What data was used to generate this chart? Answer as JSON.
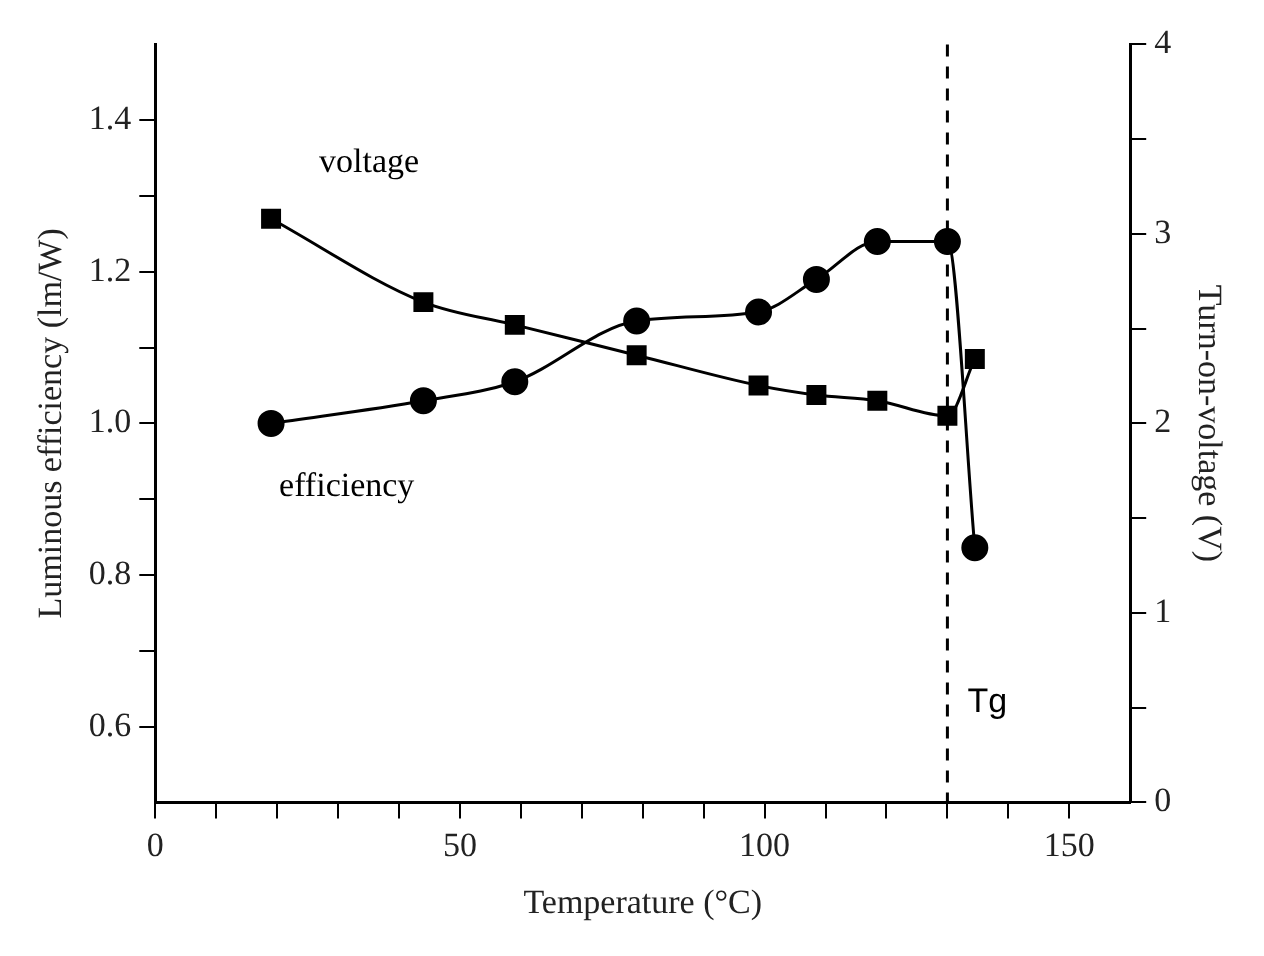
{
  "chart_data": {
    "type": "line",
    "xlabel": "Temperature (°C)",
    "ylabel": "Luminous efficiency (lm/W)",
    "y2label": "Turn-on-voltage (V)",
    "xlim": [
      0,
      160
    ],
    "xticks": [
      0,
      {
        "value": 10,
        "label": null
      },
      {
        "value": 20,
        "label": null
      },
      {
        "value": 30,
        "label": null
      },
      {
        "value": 40,
        "label": null
      },
      50,
      {
        "value": 60,
        "label": null
      },
      {
        "value": 70,
        "label": null
      },
      {
        "value": 80,
        "label": null
      },
      {
        "value": 90,
        "label": null
      },
      100,
      {
        "value": 110,
        "label": null
      },
      {
        "value": 120,
        "label": null
      },
      {
        "value": 130,
        "label": null
      },
      {
        "value": 140,
        "label": null
      },
      150
    ],
    "ylim": [
      0.5,
      1.5
    ],
    "yticks": [
      0.6,
      {
        "value": 0.7,
        "label": null
      },
      0.8,
      {
        "value": 0.9,
        "label": null
      },
      {
        "value": 1,
        "label": "1.0"
      },
      {
        "value": 1.1,
        "label": null
      },
      1.2,
      {
        "value": 1.3,
        "label": null
      },
      1.4
    ],
    "y2lim": [
      0,
      4
    ],
    "y2ticks": [
      0,
      {
        "value": 0.5,
        "label": null
      },
      1,
      {
        "value": 1.5,
        "label": null
      },
      2,
      {
        "value": 2.5,
        "label": null
      },
      3,
      {
        "value": 3.5,
        "label": null
      },
      4
    ],
    "series": [
      {
        "name": "voltage",
        "color": "#000000",
        "axis": "y2",
        "marker": "square",
        "x": [
          19,
          44,
          59,
          79,
          99,
          108.5,
          118.5,
          130,
          134.5
        ],
        "values": [
          3.08,
          2.64,
          2.52,
          2.36,
          2.2,
          2.15,
          2.12,
          2.04,
          2.34
        ]
      },
      {
        "name": "efficiency",
        "color": "#000000",
        "marker": "circle",
        "x": [
          19,
          44,
          59,
          79,
          99,
          108.5,
          118.5,
          130,
          134.5
        ],
        "values": [
          1.0,
          1.03,
          1.055,
          1.135,
          1.147,
          1.19,
          1.24,
          1.24,
          0.836
        ]
      }
    ],
    "ref_lines": [
      {
        "axis": "x",
        "value": 130,
        "label": "Tg",
        "line_style": "dashed"
      }
    ],
    "grid": false,
    "legend": false
  }
}
